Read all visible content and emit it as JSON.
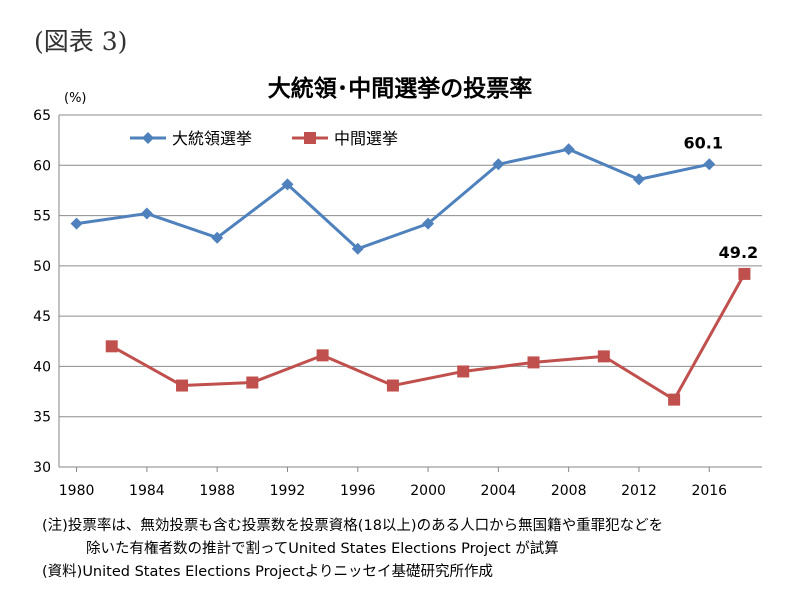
{
  "figure_label": "(図表 3)",
  "chart_data": {
    "type": "line",
    "title": "大統領･中間選挙の投票率",
    "ylabel": "(%)",
    "xlabel": "",
    "ylim": [
      30,
      65
    ],
    "yticks": [
      30,
      35,
      40,
      45,
      50,
      55,
      60,
      65
    ],
    "xlim": [
      1979,
      2019
    ],
    "xticks": [
      1980,
      1984,
      1988,
      1992,
      1996,
      2000,
      2004,
      2008,
      2012,
      2016
    ],
    "grid": true,
    "legend_position": "top-left",
    "series": [
      {
        "name": "大統領選挙",
        "color": "#4F81BD",
        "marker": "diamond",
        "x": [
          1980,
          1984,
          1988,
          1992,
          1996,
          2000,
          2004,
          2008,
          2012,
          2016
        ],
        "values": [
          54.2,
          55.2,
          52.8,
          58.1,
          51.7,
          54.2,
          60.1,
          61.6,
          58.6,
          60.1
        ]
      },
      {
        "name": "中間選挙",
        "color": "#C0504D",
        "marker": "square",
        "x": [
          1982,
          1986,
          1990,
          1994,
          1998,
          2002,
          2006,
          2010,
          2014,
          2018
        ],
        "values": [
          42.0,
          38.1,
          38.4,
          41.1,
          38.1,
          39.5,
          40.4,
          41.0,
          36.7,
          49.2
        ]
      }
    ],
    "annotations": [
      {
        "text": "60.1",
        "series": 0,
        "index": 9
      },
      {
        "text": "49.2",
        "series": 1,
        "index": 9
      }
    ]
  },
  "notes": {
    "line1": "(注)投票率は、無効投票も含む投票数を投票資格(18以上)のある人口から無国籍や重罪犯などを",
    "line2": "除いた有権者数の推計で割ってUnited States Elections Project が試算",
    "line3": "(資料)United States Elections Projectよりニッセイ基礎研究所作成"
  }
}
